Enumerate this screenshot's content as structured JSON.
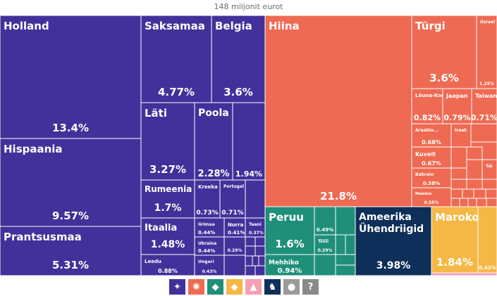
{
  "title": "148 miljonit eurot",
  "colors": {
    "europe": "#42319a",
    "asia": "#ef6a52",
    "south_america": "#1f8f7a",
    "north_america": "#0e2f59",
    "africa": "#f5b846",
    "oceania": "#f5a0b4",
    "other": "#9a9a9a",
    "border": "#ffffff"
  },
  "legend": [
    {
      "name": "europe-icon",
      "symbol": "✦",
      "color": "#42319a"
    },
    {
      "name": "asia-icon",
      "symbol": "✺",
      "color": "#ef6a52"
    },
    {
      "name": "south-america-icon",
      "symbol": "◆",
      "color": "#1f8f7a"
    },
    {
      "name": "africa-icon",
      "symbol": "◆",
      "color": "#f5b846"
    },
    {
      "name": "oceania-icon",
      "symbol": "▲",
      "color": "#f5a0b4"
    },
    {
      "name": "north-america-icon",
      "symbol": "♞",
      "color": "#0e2f59"
    },
    {
      "name": "other-icon",
      "symbol": "●",
      "color": "#9a9a9a"
    },
    {
      "name": "unknown-icon",
      "symbol": "?",
      "color": "#8a8a8a"
    }
  ],
  "chart_data": {
    "type": "treemap",
    "unit": "%",
    "cells": [
      {
        "label": "Holland",
        "value": "13.4%",
        "group": "europe"
      },
      {
        "label": "Hispaania",
        "value": "9.57%",
        "group": "europe"
      },
      {
        "label": "Prantsusmaa",
        "value": "5.31%",
        "group": "europe"
      },
      {
        "label": "Saksamaa",
        "value": "4.77%",
        "group": "europe"
      },
      {
        "label": "Belgia",
        "value": "3.6%",
        "group": "europe"
      },
      {
        "label": "Läti",
        "value": "3.27%",
        "group": "europe"
      },
      {
        "label": "Poola",
        "value": "2.28%",
        "group": "europe"
      },
      {
        "label": "",
        "value": "1.94%",
        "group": "europe"
      },
      {
        "label": "Rumeenia",
        "value": "1.7%",
        "group": "europe"
      },
      {
        "label": "Kreeka",
        "value": "0.73%",
        "group": "europe"
      },
      {
        "label": "Portugal",
        "value": "0.71%",
        "group": "europe"
      },
      {
        "label": "Itaalia",
        "value": "1.48%",
        "group": "europe"
      },
      {
        "label": "Iirimaa",
        "value": "0.44%",
        "group": "europe"
      },
      {
        "label": "Norra",
        "value": "0.41%",
        "group": "europe"
      },
      {
        "label": "Taani",
        "value": "0.37%",
        "group": "europe"
      },
      {
        "label": "Ukraina",
        "value": "0.44%",
        "group": "europe"
      },
      {
        "label": "",
        "value": "0.29%",
        "group": "europe"
      },
      {
        "label": "Leedu",
        "value": "0.88%",
        "group": "europe"
      },
      {
        "label": "Ungari",
        "value": "0.43%",
        "group": "europe"
      },
      {
        "label": "Hiina",
        "value": "21.8%",
        "group": "asia"
      },
      {
        "label": "Türgi",
        "value": "3.6%",
        "group": "asia"
      },
      {
        "label": "Iisrael",
        "value": "1.25%",
        "group": "asia"
      },
      {
        "label": "Lõuna-Korea",
        "value": "0.82%",
        "group": "asia"
      },
      {
        "label": "Jaapan",
        "value": "0.79%",
        "group": "asia"
      },
      {
        "label": "Taiwan",
        "value": "0.71%",
        "group": "asia"
      },
      {
        "label": "Araabia...",
        "value": "0.68%",
        "group": "asia"
      },
      {
        "label": "Iraak",
        "value": "",
        "group": "asia"
      },
      {
        "label": "Kuveit",
        "value": "0.67%",
        "group": "asia"
      },
      {
        "label": "Bahrein",
        "value": "0.58%",
        "group": "asia"
      },
      {
        "label": "Tai",
        "value": "",
        "group": "asia"
      },
      {
        "label": "Malaisia",
        "value": "0.55%",
        "group": "asia"
      },
      {
        "label": "Peruu",
        "value": "1.6%",
        "group": "south_america"
      },
      {
        "label": "",
        "value": "0.49%",
        "group": "south_america"
      },
      {
        "label": "Tšiili",
        "value": "0.29%",
        "group": "south_america"
      },
      {
        "label": "Mehhiko",
        "value": "0.94%",
        "group": "south_america"
      },
      {
        "label": "Ameerika Ühendriigid",
        "value": "3.98%",
        "group": "north_america"
      },
      {
        "label": "Maroko",
        "value": "1.84%",
        "group": "africa"
      },
      {
        "label": "",
        "value": "0.42%",
        "group": "africa"
      }
    ]
  }
}
